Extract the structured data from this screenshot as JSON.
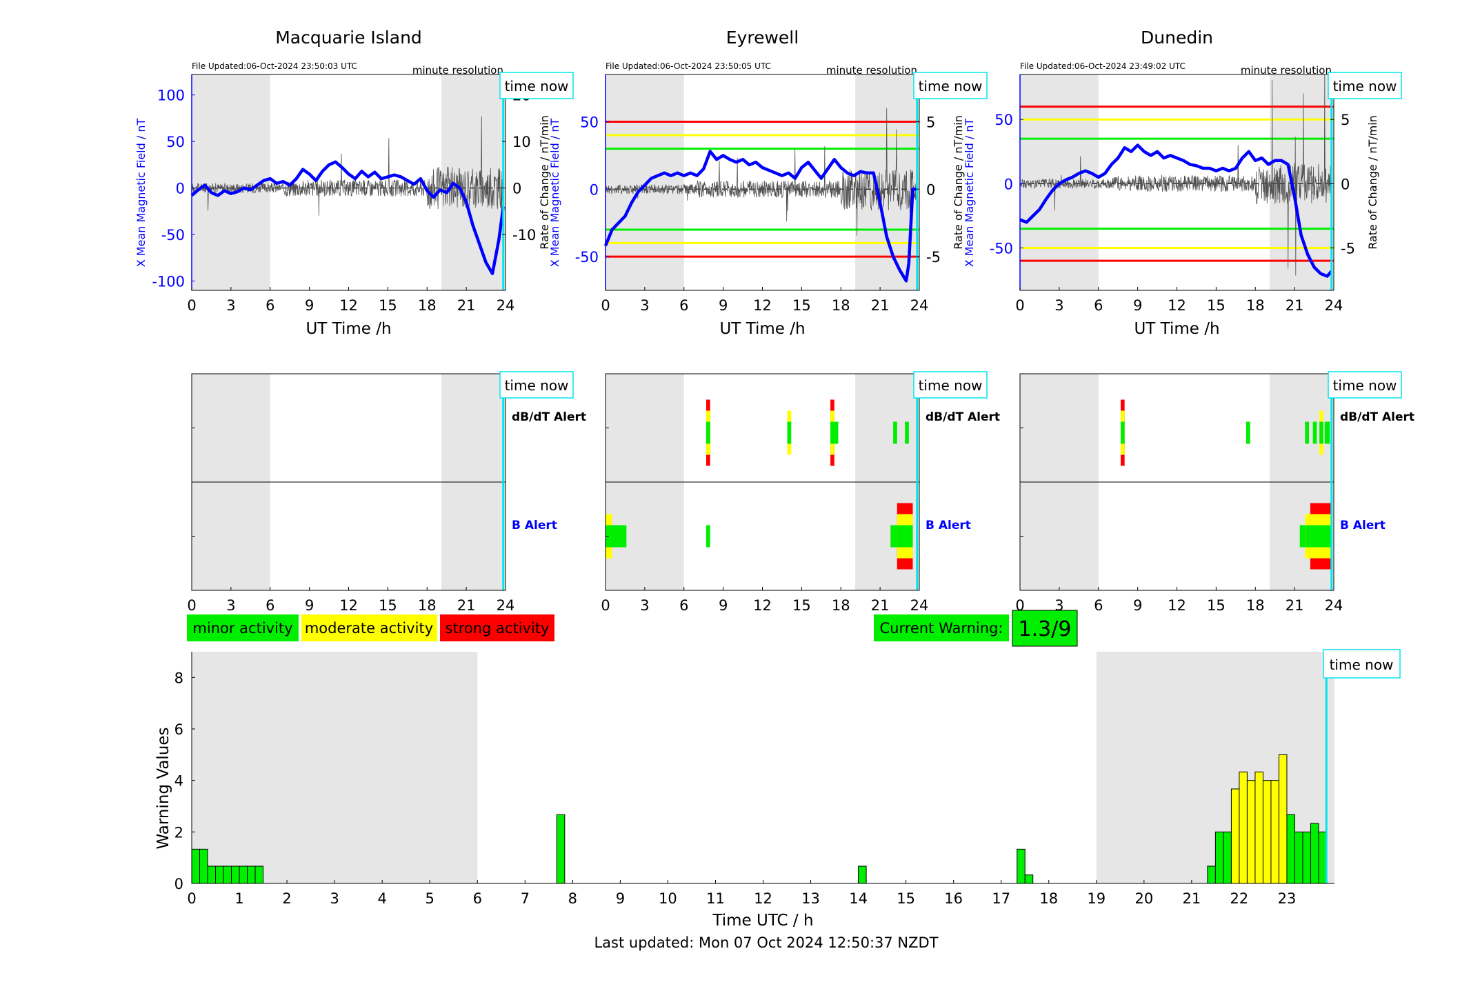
{
  "colors": {
    "b_series": "#0000ff",
    "dbdt_trace": "#505050",
    "night_shade": "#e6e6e6",
    "time_now": "#00e5ee",
    "minor": "#00ee00",
    "moderate": "#ffff00",
    "strong": "#ff0000",
    "axis": "#000000"
  },
  "common": {
    "x_ticks": [
      "0",
      "3",
      "6",
      "9",
      "12",
      "15",
      "18",
      "21",
      "24"
    ],
    "x_label": "UT Time /h",
    "y_left_label": "X Mean Magnetic Field / nT",
    "y_right_label": "Rate of Change / nT/min",
    "time_now": "time now",
    "resolution": "minute resolution",
    "dbdt_alert": "dB/dT Alert",
    "b_alert": "B Alert"
  },
  "legend": {
    "minor": "minor activity",
    "moderate": "moderate activity",
    "strong": "strong activity"
  },
  "current_warning": {
    "label": "Current Warning:",
    "value": "1.3/9"
  },
  "footer": {
    "last_updated": "Last updated: Mon 07 Oct 2024 12:50:37 NZDT"
  },
  "chart_data": [
    {
      "type": "line",
      "title": "Macquarie Island",
      "file_updated": "File Updated:06-Oct-2024 23:50:03 UTC",
      "xlim": [
        0,
        24
      ],
      "ylim": [
        -110,
        122
      ],
      "ylim_right": [
        -22,
        24.4
      ],
      "y_ticks": [
        "100",
        "50",
        "0",
        "-50",
        "-100"
      ],
      "y_ticks_right": [
        "20",
        "10",
        "0",
        "-10"
      ],
      "night_shade": [
        [
          0,
          6
        ],
        [
          19.1,
          24
        ]
      ],
      "time_now": 23.83,
      "thresholds": [],
      "b_series": [
        [
          0,
          -8
        ],
        [
          0.5,
          -2
        ],
        [
          1,
          3
        ],
        [
          1.5,
          -5
        ],
        [
          2,
          -8
        ],
        [
          2.5,
          -3
        ],
        [
          3,
          -6
        ],
        [
          3.5,
          -4
        ],
        [
          4,
          0
        ],
        [
          4.5,
          -2
        ],
        [
          5,
          3
        ],
        [
          5.5,
          8
        ],
        [
          6,
          10
        ],
        [
          6.5,
          5
        ],
        [
          7,
          7
        ],
        [
          7.5,
          3
        ],
        [
          8,
          10
        ],
        [
          8.5,
          20
        ],
        [
          9,
          15
        ],
        [
          9.5,
          8
        ],
        [
          10,
          18
        ],
        [
          10.5,
          25
        ],
        [
          11,
          28
        ],
        [
          11.5,
          22
        ],
        [
          12,
          15
        ],
        [
          12.5,
          10
        ],
        [
          13,
          18
        ],
        [
          13.5,
          12
        ],
        [
          14,
          17
        ],
        [
          14.5,
          10
        ],
        [
          15,
          12
        ],
        [
          15.5,
          14
        ],
        [
          16,
          12
        ],
        [
          16.5,
          8
        ],
        [
          17,
          4
        ],
        [
          17.5,
          10
        ],
        [
          18,
          -3
        ],
        [
          18.5,
          -10
        ],
        [
          19,
          -2
        ],
        [
          19.5,
          -5
        ],
        [
          20,
          5
        ],
        [
          20.5,
          0
        ],
        [
          21,
          -15
        ],
        [
          21.5,
          -40
        ],
        [
          22,
          -60
        ],
        [
          22.5,
          -80
        ],
        [
          23,
          -92
        ],
        [
          23.3,
          -70
        ],
        [
          23.5,
          -55
        ],
        [
          23.83,
          -20
        ]
      ],
      "alerts": {
        "dbdt": [],
        "b": []
      }
    },
    {
      "type": "line",
      "title": "Eyrewell",
      "file_updated": "File Updated:06-Oct-2024 23:50:05 UTC",
      "xlim": [
        0,
        24
      ],
      "ylim": [
        -75,
        85
      ],
      "ylim_right": [
        -7.5,
        8.5
      ],
      "y_ticks": [
        "50",
        "0",
        "-50"
      ],
      "y_ticks_right": [
        "5",
        "0",
        "-5"
      ],
      "night_shade": [
        [
          0,
          6
        ],
        [
          19.1,
          24
        ]
      ],
      "time_now": 23.83,
      "thresholds": [
        {
          "level": "minor",
          "values": [
            30,
            -30
          ]
        },
        {
          "level": "moderate",
          "values": [
            40,
            -40
          ]
        },
        {
          "level": "strong",
          "values": [
            50,
            -50
          ]
        }
      ],
      "b_series": [
        [
          0,
          -42
        ],
        [
          0.5,
          -30
        ],
        [
          1,
          -25
        ],
        [
          1.5,
          -20
        ],
        [
          2,
          -10
        ],
        [
          2.5,
          -2
        ],
        [
          3,
          3
        ],
        [
          3.5,
          8
        ],
        [
          4,
          10
        ],
        [
          4.5,
          12
        ],
        [
          5,
          10
        ],
        [
          5.5,
          12
        ],
        [
          6,
          10
        ],
        [
          6.5,
          12
        ],
        [
          7,
          10
        ],
        [
          7.5,
          15
        ],
        [
          8,
          28
        ],
        [
          8.5,
          22
        ],
        [
          9,
          25
        ],
        [
          9.5,
          22
        ],
        [
          10,
          20
        ],
        [
          10.5,
          22
        ],
        [
          11,
          18
        ],
        [
          11.5,
          20
        ],
        [
          12,
          16
        ],
        [
          12.5,
          14
        ],
        [
          13,
          12
        ],
        [
          13.5,
          10
        ],
        [
          14,
          12
        ],
        [
          14.5,
          8
        ],
        [
          15,
          16
        ],
        [
          15.5,
          20
        ],
        [
          16,
          14
        ],
        [
          16.5,
          8
        ],
        [
          17,
          15
        ],
        [
          17.5,
          22
        ],
        [
          18,
          16
        ],
        [
          18.5,
          12
        ],
        [
          19,
          10
        ],
        [
          19.5,
          13
        ],
        [
          20,
          12
        ],
        [
          20.5,
          12
        ],
        [
          21,
          -10
        ],
        [
          21.5,
          -35
        ],
        [
          22,
          -50
        ],
        [
          22.5,
          -60
        ],
        [
          23,
          -68
        ],
        [
          23.2,
          -55
        ],
        [
          23.5,
          0
        ],
        [
          23.83,
          0
        ]
      ],
      "alerts": {
        "dbdt": [
          {
            "start": 7.7,
            "end": 8.0,
            "level": "strong"
          },
          {
            "start": 13.9,
            "end": 14.2,
            "level": "moderate"
          },
          {
            "start": 17.2,
            "end": 17.5,
            "level": "strong"
          },
          {
            "start": 17.5,
            "end": 17.8,
            "level": "minor"
          },
          {
            "start": 22.0,
            "end": 22.3,
            "level": "minor"
          },
          {
            "start": 22.9,
            "end": 23.2,
            "level": "minor"
          }
        ],
        "b": [
          {
            "start": 0.0,
            "end": 0.5,
            "level": "moderate"
          },
          {
            "start": 0.5,
            "end": 1.6,
            "level": "minor"
          },
          {
            "start": 7.7,
            "end": 8.0,
            "level": "minor"
          },
          {
            "start": 21.8,
            "end": 22.3,
            "level": "minor"
          },
          {
            "start": 22.3,
            "end": 23.5,
            "level": "strong"
          }
        ]
      }
    },
    {
      "type": "line",
      "title": "Dunedin",
      "file_updated": "File Updated:06-Oct-2024 23:49:02 UTC",
      "xlim": [
        0,
        24
      ],
      "ylim": [
        -83,
        85
      ],
      "ylim_right": [
        -8.3,
        8.5
      ],
      "y_ticks": [
        "50",
        "0",
        "-50"
      ],
      "y_ticks_right": [
        "5",
        "0",
        "-5"
      ],
      "night_shade": [
        [
          0,
          6
        ],
        [
          19.1,
          24
        ]
      ],
      "time_now": 23.83,
      "thresholds": [
        {
          "level": "minor",
          "values": [
            35,
            -35
          ]
        },
        {
          "level": "moderate",
          "values": [
            50,
            -50
          ]
        },
        {
          "level": "strong",
          "values": [
            60,
            -60
          ]
        }
      ],
      "b_series": [
        [
          0,
          -28
        ],
        [
          0.5,
          -30
        ],
        [
          1,
          -25
        ],
        [
          1.5,
          -20
        ],
        [
          2,
          -12
        ],
        [
          2.5,
          -5
        ],
        [
          3,
          0
        ],
        [
          3.5,
          3
        ],
        [
          4,
          5
        ],
        [
          4.5,
          8
        ],
        [
          5,
          10
        ],
        [
          5.5,
          8
        ],
        [
          6,
          5
        ],
        [
          6.5,
          8
        ],
        [
          7,
          15
        ],
        [
          7.5,
          20
        ],
        [
          8,
          28
        ],
        [
          8.5,
          25
        ],
        [
          9,
          30
        ],
        [
          9.5,
          25
        ],
        [
          10,
          22
        ],
        [
          10.5,
          25
        ],
        [
          11,
          20
        ],
        [
          11.5,
          22
        ],
        [
          12,
          20
        ],
        [
          12.5,
          18
        ],
        [
          13,
          15
        ],
        [
          13.5,
          14
        ],
        [
          14,
          12
        ],
        [
          14.5,
          12
        ],
        [
          15,
          10
        ],
        [
          15.5,
          12
        ],
        [
          16,
          10
        ],
        [
          16.5,
          12
        ],
        [
          17,
          20
        ],
        [
          17.5,
          25
        ],
        [
          18,
          18
        ],
        [
          18.5,
          20
        ],
        [
          19,
          15
        ],
        [
          19.5,
          18
        ],
        [
          20,
          18
        ],
        [
          20.5,
          15
        ],
        [
          21,
          -10
        ],
        [
          21.5,
          -40
        ],
        [
          22,
          -55
        ],
        [
          22.5,
          -65
        ],
        [
          23,
          -70
        ],
        [
          23.5,
          -72
        ],
        [
          23.83,
          -68
        ]
      ],
      "alerts": {
        "dbdt": [
          {
            "start": 7.7,
            "end": 8.0,
            "level": "strong"
          },
          {
            "start": 17.3,
            "end": 17.6,
            "level": "minor"
          },
          {
            "start": 21.8,
            "end": 22.1,
            "level": "minor"
          },
          {
            "start": 22.4,
            "end": 22.7,
            "level": "minor"
          },
          {
            "start": 22.9,
            "end": 23.2,
            "level": "moderate"
          },
          {
            "start": 23.3,
            "end": 23.7,
            "level": "minor"
          }
        ],
        "b": [
          {
            "start": 21.4,
            "end": 21.8,
            "level": "minor"
          },
          {
            "start": 21.8,
            "end": 22.2,
            "level": "moderate"
          },
          {
            "start": 22.2,
            "end": 23.8,
            "level": "strong"
          }
        ]
      }
    },
    {
      "type": "bar",
      "xlabel": "Time UTC / h",
      "ylabel": "Warning Values",
      "xlim": [
        0,
        24
      ],
      "ylim": [
        0,
        9
      ],
      "x_ticks": [
        "0",
        "1",
        "2",
        "3",
        "4",
        "5",
        "6",
        "7",
        "8",
        "9",
        "10",
        "11",
        "12",
        "13",
        "14",
        "15",
        "16",
        "17",
        "18",
        "19",
        "20",
        "21",
        "22",
        "23"
      ],
      "y_ticks": [
        "0",
        "2",
        "4",
        "6",
        "8"
      ],
      "night_shade": [
        [
          0,
          6
        ],
        [
          19,
          24
        ]
      ],
      "time_now": 23.83,
      "bin_width": 0.1667,
      "bars": [
        [
          0.0833,
          1.33
        ],
        [
          0.25,
          1.33
        ],
        [
          0.4167,
          0.67
        ],
        [
          0.5833,
          0.67
        ],
        [
          0.75,
          0.67
        ],
        [
          0.9167,
          0.67
        ],
        [
          1.0833,
          0.67
        ],
        [
          1.25,
          0.67
        ],
        [
          1.4167,
          0.67
        ],
        [
          7.75,
          2.67
        ],
        [
          14.0833,
          0.67
        ],
        [
          17.4167,
          1.33
        ],
        [
          17.5833,
          0.33
        ],
        [
          21.4167,
          0.67
        ],
        [
          21.5833,
          2
        ],
        [
          21.75,
          2
        ],
        [
          21.9167,
          3.67
        ],
        [
          22.0833,
          4.33
        ],
        [
          22.25,
          4
        ],
        [
          22.4167,
          4.33
        ],
        [
          22.5833,
          4
        ],
        [
          22.75,
          4
        ],
        [
          22.9167,
          5
        ],
        [
          23.0833,
          2.67
        ],
        [
          23.25,
          2
        ],
        [
          23.4167,
          2
        ],
        [
          23.5833,
          2.33
        ],
        [
          23.75,
          2
        ]
      ]
    }
  ]
}
